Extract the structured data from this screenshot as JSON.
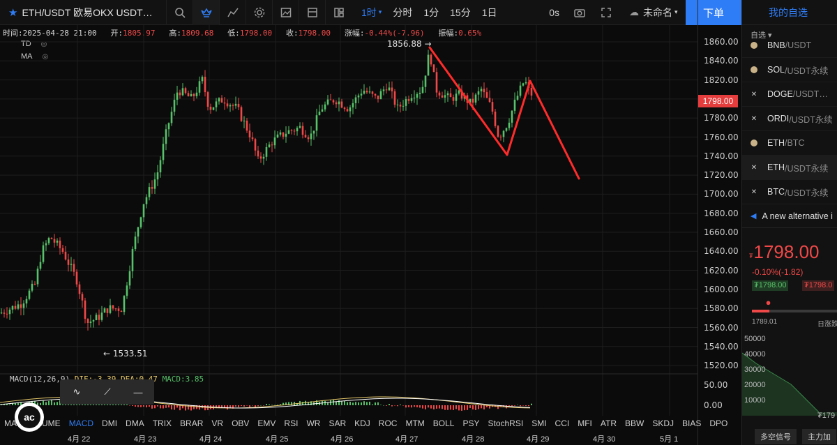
{
  "toolbar": {
    "symbol": "ETH/USDT 欧易OKX USDT…",
    "intervals": [
      "1时",
      "分时",
      "1分",
      "15分",
      "1日"
    ],
    "active_interval": "1时",
    "countdown": "0s",
    "layout_name": "未命名",
    "order_button": "下单"
  },
  "info": {
    "time_label": "时间:",
    "time": "2025-04-28 21:00",
    "open_label": "开:",
    "open": "1805.97",
    "high_label": "高:",
    "high": "1809.68",
    "low_label": "低:",
    "low": "1798.00",
    "close_label": "收:",
    "close": "1798.00",
    "change_label": "涨幅:",
    "change": "-0.44%(-7.96)",
    "amp_label": "振幅:",
    "amp": "0.65%"
  },
  "indicators_overlay": [
    "TD",
    "MA"
  ],
  "price_axis": {
    "ticks": [
      "1860.00",
      "1840.00",
      "1820.00",
      "1800.00",
      "1780.00",
      "1760.00",
      "1740.00",
      "1720.00",
      "1700.00",
      "1680.00",
      "1660.00",
      "1640.00",
      "1620.00",
      "1600.00",
      "1580.00",
      "1560.00",
      "1540.00",
      "1520.00"
    ],
    "current": "1798.00",
    "macd_ticks": [
      "50.00",
      "0.00"
    ]
  },
  "annotations": {
    "high": "1856.88",
    "low": "1533.51"
  },
  "macd": {
    "label": "MACD(12,26,9)",
    "dif": "DIF:-3.39",
    "dea": "DEA:0.47",
    "macd": "MACD:3.85"
  },
  "indicator_tabs": [
    "MA",
    "VOLUME",
    "MACD",
    "DMI",
    "DMA",
    "TRIX",
    "BRAR",
    "VR",
    "OBV",
    "EMV",
    "RSI",
    "WR",
    "SAR",
    "KDJ",
    "ROC",
    "MTM",
    "BOLL",
    "PSY",
    "StochRSI",
    "SMI",
    "CCI",
    "MFI",
    "ATR",
    "BBW",
    "SKDJ",
    "BIAS",
    "DPO"
  ],
  "active_indicator": "MACD",
  "dates": [
    "4月 22",
    "4月 23",
    "4月 24",
    "4月 25",
    "4月 26",
    "4月 27",
    "4月 28",
    "4月 29",
    "4月 30",
    "5月 1"
  ],
  "watchlist": {
    "title": "我的自选",
    "filter": "自选",
    "items": [
      {
        "base": "BNB",
        "quote": "/USDT",
        "marker": "dot"
      },
      {
        "base": "SOL",
        "quote": "/USDT永续",
        "marker": "dot"
      },
      {
        "base": "DOGE",
        "quote": "/USDT…",
        "marker": "x"
      },
      {
        "base": "ORDI",
        "quote": "/USDT永续",
        "marker": "x"
      },
      {
        "base": "ETH",
        "quote": "/BTC",
        "marker": "dot"
      },
      {
        "base": "ETH",
        "quote": "/USDT永续",
        "marker": "x"
      },
      {
        "base": "BTC",
        "quote": "/USDT永续",
        "marker": "x"
      }
    ],
    "news": "A new alternative i"
  },
  "quote_panel": {
    "currency": "₮",
    "price": "1798.00",
    "change": "-0.10%(-1.82)",
    "bid": "₮1798.00",
    "ask": "₮1798.0",
    "range_low": "1789.01",
    "range_hi_label": "日涨跌",
    "range_position": 0.2,
    "depth_ticks": [
      "50000",
      "40000",
      "30000",
      "20000",
      "10000"
    ],
    "bottom_value": "₮179",
    "tabs": [
      "多空信号",
      "主力加"
    ]
  },
  "colors": {
    "up": "#57c26a",
    "down": "#f04848",
    "accent": "#2f7df6",
    "drawing": "#ff2b2b"
  }
}
